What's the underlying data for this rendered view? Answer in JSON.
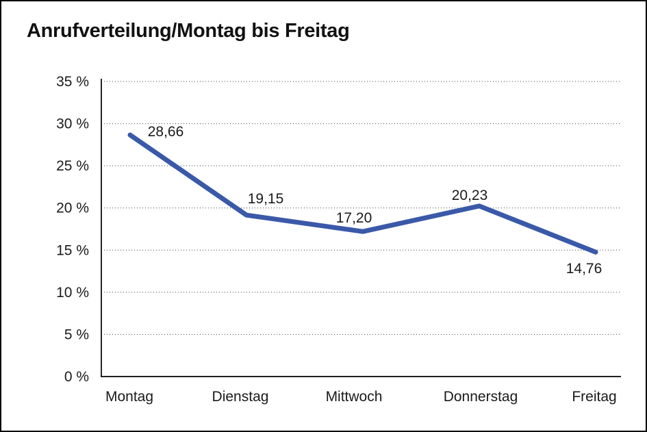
{
  "page": {
    "background_color": "#ffffff",
    "frame_border_color": "#000000"
  },
  "chart_data": {
    "type": "line",
    "title": "Anrufverteilung/Montag bis Freitag",
    "categories": [
      "Montag",
      "Dienstag",
      "Mittwoch",
      "Donnerstag",
      "Freitag"
    ],
    "series": [
      {
        "name": "Anrufverteilung",
        "values": [
          28.66,
          19.15,
          17.2,
          20.23,
          14.76
        ]
      }
    ],
    "data_labels": [
      "28,66",
      "19,15",
      "17,20",
      "20,23",
      "14,76"
    ],
    "xlabel": "",
    "ylabel": "",
    "ylim": [
      0,
      35
    ],
    "ytick_step": 5,
    "yticks": [
      {
        "value": 0,
        "label": "0 %"
      },
      {
        "value": 5,
        "label": "5 %"
      },
      {
        "value": 10,
        "label": "10 %"
      },
      {
        "value": 15,
        "label": "15 %"
      },
      {
        "value": 20,
        "label": "20 %"
      },
      {
        "value": 25,
        "label": "25 %"
      },
      {
        "value": 30,
        "label": "30 %"
      },
      {
        "value": 35,
        "label": "35 %"
      }
    ],
    "grid": "horizontal-dotted",
    "legend": "none",
    "line_color": "#3A59A8",
    "text_color": "#1a1a1a",
    "axis_color": "#000000",
    "grid_color": "#3f3f3f"
  }
}
